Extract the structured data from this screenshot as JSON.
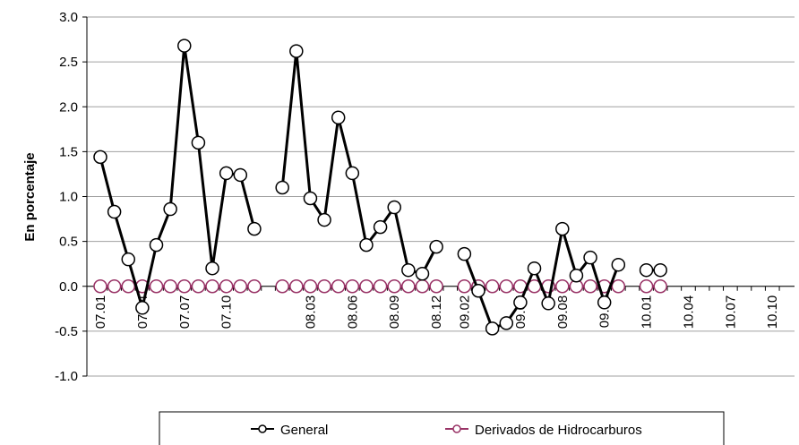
{
  "chart_data": {
    "type": "line",
    "y_label": "En porcentaje",
    "categories": [
      "07.01",
      null,
      null,
      "07.04",
      null,
      null,
      "07.07",
      null,
      null,
      "07.10",
      null,
      null,
      null,
      null,
      null,
      "08.03",
      null,
      null,
      "08.06",
      null,
      null,
      "08.09",
      null,
      null,
      "08.12",
      null,
      "09.02",
      null,
      null,
      null,
      "09.05",
      null,
      null,
      "09.08",
      null,
      null,
      "09.11",
      null,
      null,
      "10.01",
      null,
      null,
      "10.04",
      null,
      null,
      "10.07",
      null,
      null,
      "10.10"
    ],
    "series": [
      {
        "name": "General",
        "color": "#000000",
        "values": [
          1.44,
          0.83,
          0.3,
          -0.24,
          0.46,
          0.86,
          2.68,
          1.6,
          0.2,
          1.26,
          1.24,
          0.64,
          null,
          1.1,
          2.62,
          0.98,
          0.74,
          1.88,
          1.26,
          0.46,
          0.66,
          0.88,
          0.18,
          0.14,
          0.44,
          null,
          0.36,
          -0.05,
          -0.47,
          -0.41,
          -0.18,
          0.2,
          -0.19,
          0.64,
          0.12,
          0.32,
          -0.18,
          0.24,
          null,
          0.18,
          0.18,
          null,
          null,
          null,
          null,
          null,
          null,
          null,
          null
        ]
      },
      {
        "name": "Derivados de Hidrocarburos",
        "color": "#993366",
        "values": [
          0,
          0,
          0,
          0,
          0,
          0,
          0,
          0,
          0,
          0,
          0,
          0,
          null,
          0,
          0,
          0,
          0,
          0,
          0,
          0,
          0,
          0,
          0,
          0,
          0,
          null,
          0,
          0,
          0,
          0,
          0,
          0,
          0,
          0,
          0,
          0,
          0,
          0,
          null,
          0,
          0,
          null,
          null,
          null,
          null,
          null,
          null,
          null,
          null
        ]
      }
    ],
    "ylim": [
      -1.0,
      3.0
    ],
    "yticks": [
      {
        "value": -1.0,
        "label": "-1.0"
      },
      {
        "value": -0.5,
        "label": "-0.5"
      },
      {
        "value": 0,
        "label": "0.0"
      },
      {
        "value": 0.5,
        "label": "0.5"
      },
      {
        "value": 1.0,
        "label": "1.0"
      },
      {
        "value": 1.5,
        "label": "1.5"
      },
      {
        "value": 2.0,
        "label": "2.0"
      },
      {
        "value": 2.5,
        "label": "2.5"
      },
      {
        "value": 3.0,
        "label": "3.0"
      }
    ],
    "grid": true,
    "legend": "bottom"
  }
}
